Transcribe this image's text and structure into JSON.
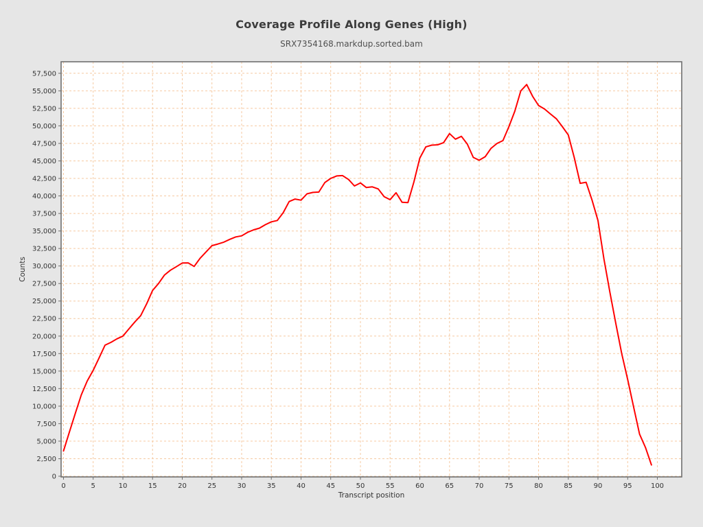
{
  "chart_data": {
    "type": "line",
    "title": "Coverage Profile Along Genes (High)",
    "subtitle": "SRX7354168.markdup.sorted.bam",
    "xlabel": "Transcript position",
    "ylabel": "Counts",
    "legend": "none",
    "grid": "dashed, both axes, at every tick",
    "xlim": [
      -0.4,
      104.1
    ],
    "ylim": [
      -100,
      59150
    ],
    "x_ticks": [
      0,
      5,
      10,
      15,
      20,
      25,
      30,
      35,
      40,
      45,
      50,
      55,
      60,
      65,
      70,
      75,
      80,
      85,
      90,
      95,
      100
    ],
    "x_tick_labels": [
      "0",
      "5",
      "10",
      "15",
      "20",
      "25",
      "30",
      "35",
      "40",
      "45",
      "50",
      "55",
      "60",
      "65",
      "70",
      "75",
      "80",
      "85",
      "90",
      "95",
      "100"
    ],
    "y_ticks": [
      0,
      2500,
      5000,
      7500,
      10000,
      12500,
      15000,
      17500,
      20000,
      22500,
      25000,
      27500,
      30000,
      32500,
      35000,
      37500,
      40000,
      42500,
      45000,
      47500,
      50000,
      52500,
      55000,
      57500
    ],
    "y_tick_labels": [
      "0",
      "2,500",
      "5,000",
      "7,500",
      "10,000",
      "12,500",
      "15,000",
      "17,500",
      "20,000",
      "22,500",
      "25,000",
      "27,500",
      "30,000",
      "32,500",
      "35,000",
      "37,500",
      "40,000",
      "42,500",
      "45,000",
      "47,500",
      "50,000",
      "52,500",
      "55,000",
      "57,500"
    ],
    "x": [
      0,
      1,
      2,
      3,
      4,
      5,
      6,
      7,
      8,
      9,
      10,
      11,
      12,
      13,
      14,
      15,
      16,
      17,
      18,
      19,
      20,
      21,
      22,
      23,
      24,
      25,
      26,
      27,
      28,
      29,
      30,
      31,
      32,
      33,
      34,
      35,
      36,
      37,
      38,
      39,
      40,
      41,
      42,
      43,
      44,
      45,
      46,
      47,
      48,
      49,
      50,
      51,
      52,
      53,
      54,
      55,
      56,
      57,
      58,
      59,
      60,
      61,
      62,
      63,
      64,
      65,
      66,
      67,
      68,
      69,
      70,
      71,
      72,
      73,
      74,
      75,
      76,
      77,
      78,
      79,
      80,
      81,
      82,
      83,
      84,
      85,
      86,
      87,
      88,
      89,
      90,
      91,
      92,
      93,
      94,
      95,
      96,
      97,
      98,
      99
    ],
    "values": [
      3600,
      6300,
      9000,
      11600,
      13600,
      15100,
      16900,
      18700,
      19100,
      19600,
      20000,
      21000,
      22000,
      22900,
      24600,
      26500,
      27500,
      28700,
      29400,
      29900,
      30430,
      30450,
      29940,
      31100,
      32000,
      32900,
      33140,
      33400,
      33800,
      34150,
      34300,
      34800,
      35160,
      35400,
      35900,
      36300,
      36500,
      37600,
      39200,
      39550,
      39400,
      40300,
      40500,
      40550,
      41900,
      42500,
      42850,
      42900,
      42340,
      41420,
      41850,
      41200,
      41300,
      41000,
      39900,
      39470,
      40450,
      39100,
      39050,
      42000,
      45400,
      47000,
      47250,
      47300,
      47600,
      48900,
      48100,
      48500,
      47400,
      45500,
      45100,
      45600,
      46800,
      47500,
      47900,
      49900,
      52100,
      55000,
      55900,
      54200,
      52900,
      52400,
      51700,
      51000,
      49900,
      48700,
      45500,
      41800,
      41950,
      39400,
      36500,
      31000,
      26300,
      21800,
      17500,
      13800,
      9900,
      6000,
      4100,
      1600
    ],
    "colors": {
      "line": "#ff0000",
      "grid": "#f6c9a0",
      "axis": "#6e6e6e",
      "plot_border": "#6e6e6e",
      "plot_background": "#ffffff",
      "page_background": "#e6e6e6"
    }
  }
}
